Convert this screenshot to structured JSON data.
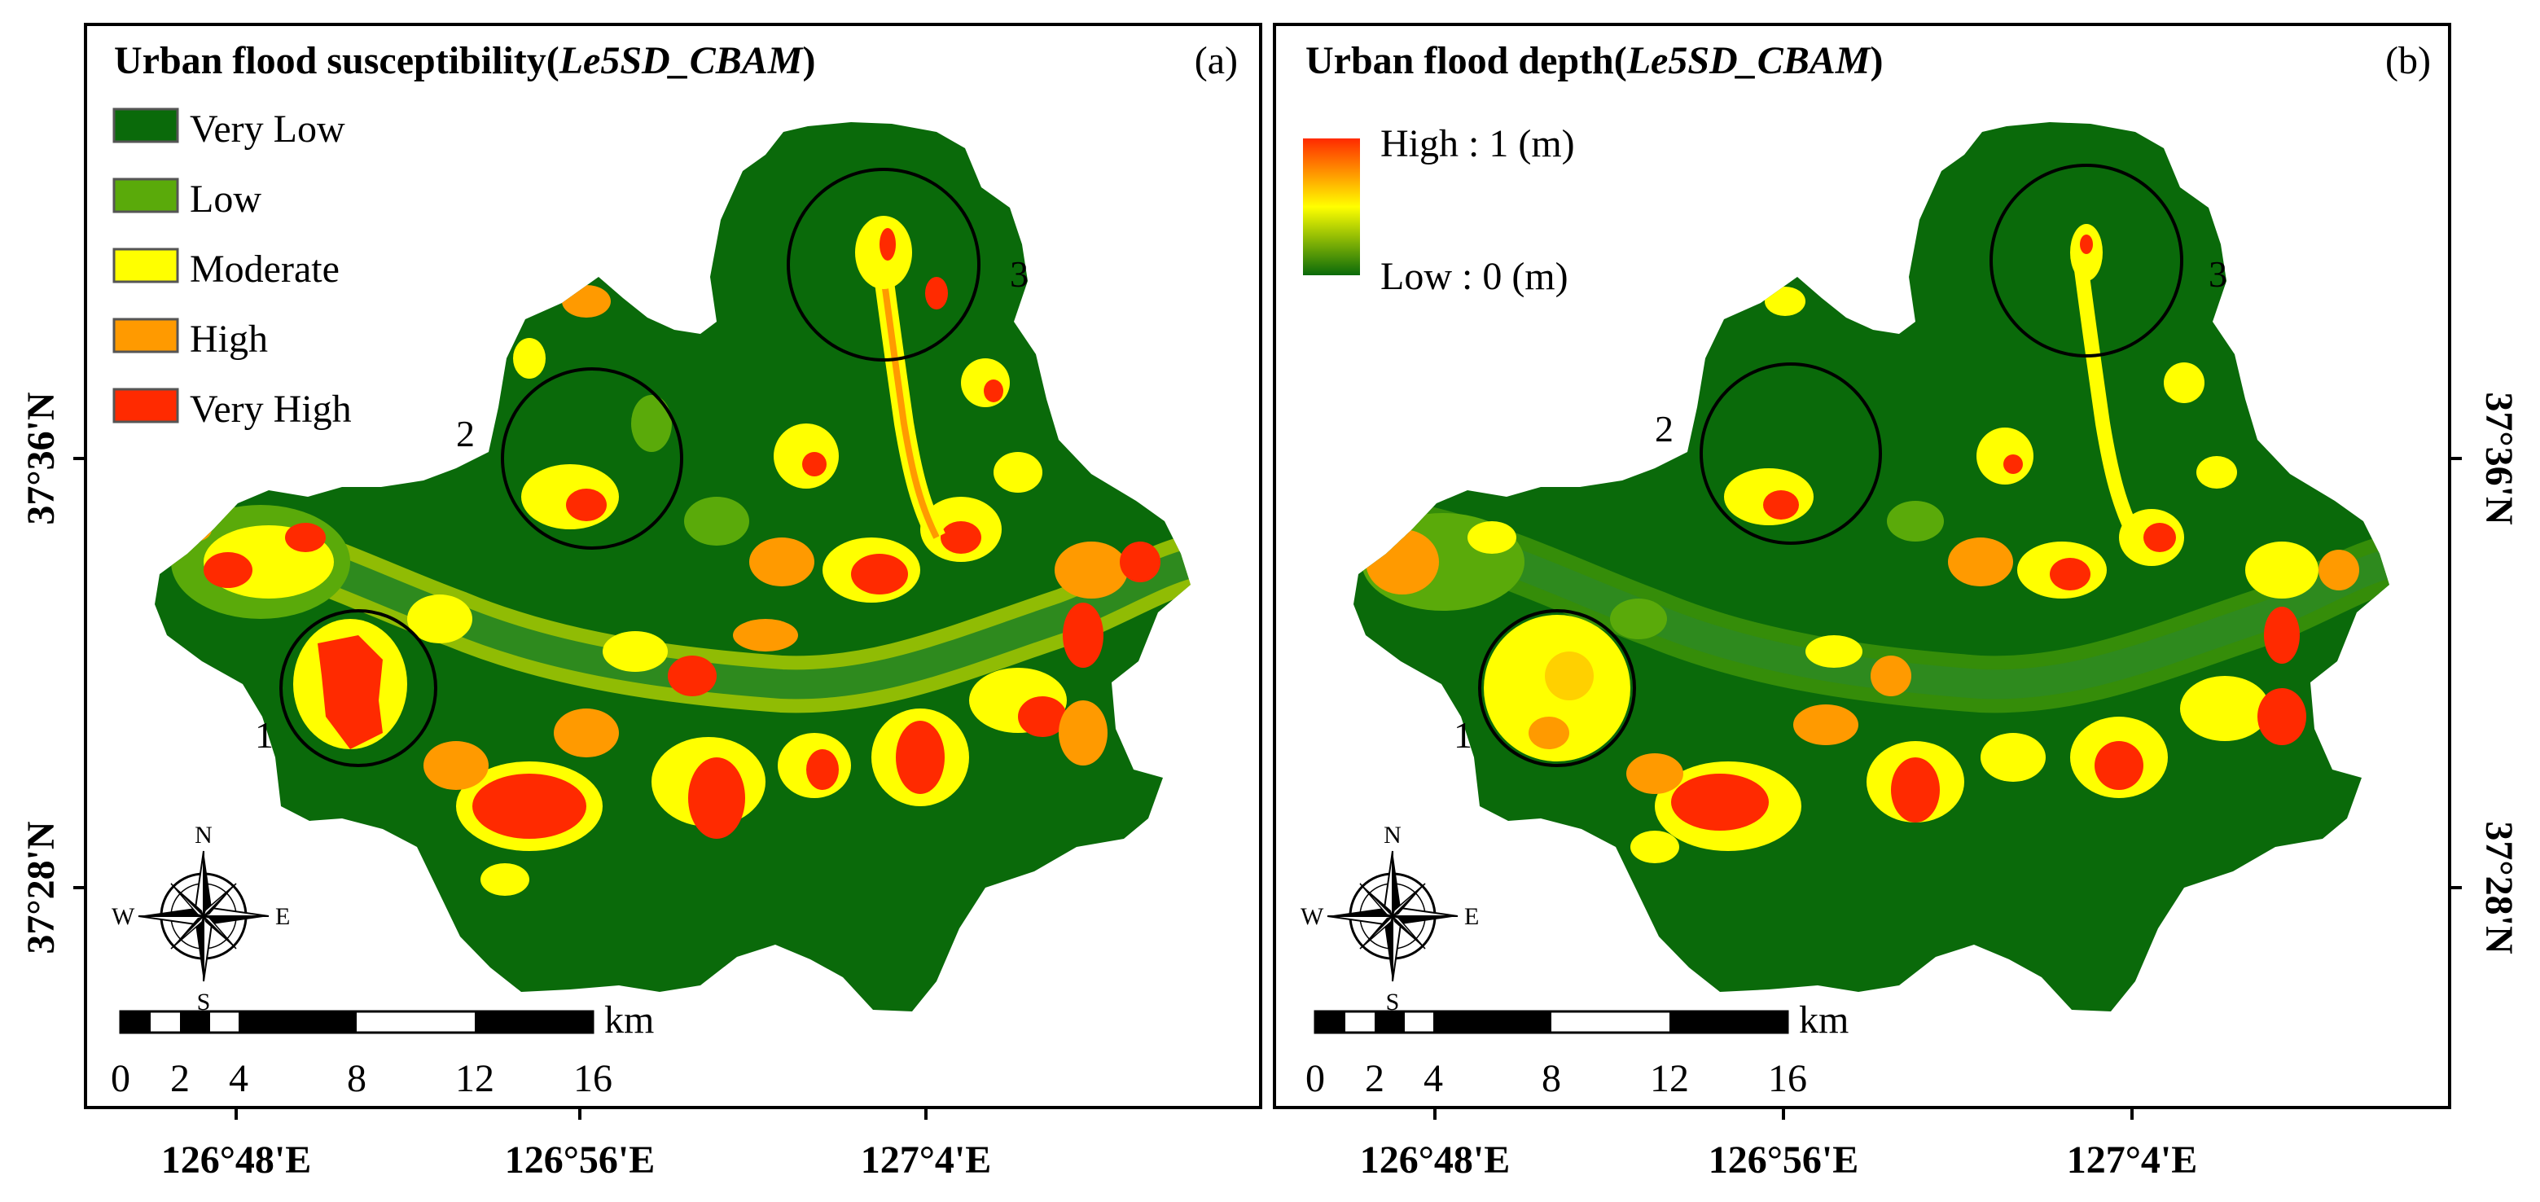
{
  "panels": [
    {
      "id": "a",
      "title_prefix": "Urban flood susceptibility(",
      "title_model": "Le5SD_CBAM",
      "title_suffix": ")",
      "panel_label": "(a)",
      "legend": [
        {
          "label": "Very Low",
          "color": "#0a6a0a"
        },
        {
          "label": "Low",
          "color": "#5aaa0a"
        },
        {
          "label": "Moderate",
          "color": "#ffff00"
        },
        {
          "label": "High",
          "color": "#ff9a00"
        },
        {
          "label": "Very High",
          "color": "#ff2a00"
        }
      ]
    },
    {
      "id": "b",
      "title_prefix": "Urban flood depth(",
      "title_model": "Le5SD_CBAM",
      "title_suffix": ")",
      "panel_label": "(b)",
      "gradient_high": "High : 1 (m)",
      "gradient_low": "Low : 0 (m)",
      "gradient_colors": [
        "#ff2a00",
        "#ffff00",
        "#0a6a0a"
      ]
    }
  ],
  "circle_labels": [
    "1",
    "2",
    "3"
  ],
  "compass": {
    "n": "N",
    "s": "S",
    "e": "E",
    "w": "W"
  },
  "scale_bar": {
    "unit": "km",
    "ticks": [
      "0",
      "2",
      "4",
      "8",
      "12",
      "16"
    ]
  },
  "axes": {
    "x_labels": [
      "126°48'E",
      "126°56'E",
      "127°4'E"
    ],
    "y_labels": [
      "37°36'N",
      "37°28'N"
    ]
  },
  "colors": {
    "base": "#0a6a0a",
    "river": "#2e8a1e"
  }
}
